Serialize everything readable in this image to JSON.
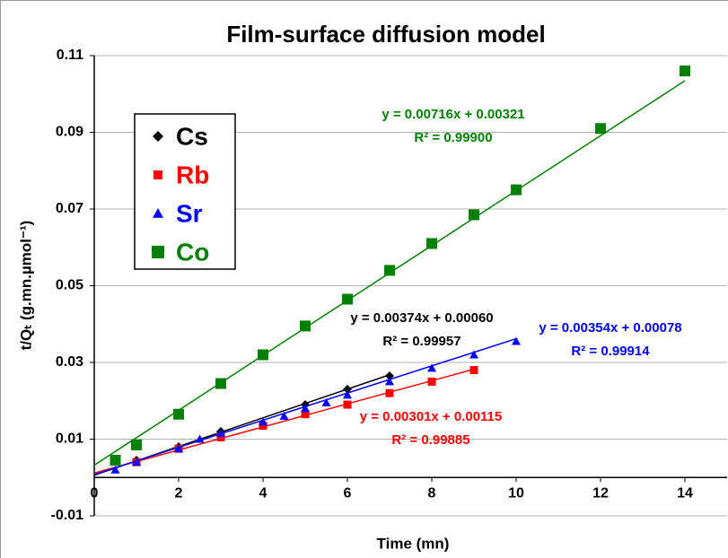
{
  "chart_data": {
    "type": "scatter",
    "title": "Film-surface diffusion model",
    "xlabel": "Time (mn)",
    "ylabel": "t/Qₜ (g.mn.µmol⁻¹)",
    "xlim": [
      0,
      15
    ],
    "xticks": [
      0,
      2,
      4,
      6,
      8,
      10,
      12,
      14
    ],
    "ylim": [
      -0.01,
      0.11
    ],
    "yticks": [
      -0.01,
      0.01,
      0.03,
      0.05,
      0.07,
      0.09,
      0.11
    ],
    "grid": true,
    "legend": "upper left",
    "series": [
      {
        "name": "Cs",
        "color": "#000000",
        "marker": "diamond",
        "x": [
          1,
          2,
          3,
          5,
          6,
          7
        ],
        "values": [
          0.0045,
          0.008,
          0.012,
          0.019,
          0.023,
          0.0265
        ],
        "trendline": {
          "slope": 0.00374,
          "intercept": 0.0006,
          "equation": "y = 0.00374x + 0.00060",
          "r2": "R² = 0.99957"
        }
      },
      {
        "name": "Rb",
        "color": "#ff0000",
        "marker": "square",
        "x": [
          1,
          2,
          3,
          4,
          5,
          6,
          7,
          8,
          9
        ],
        "values": [
          0.004,
          0.0075,
          0.0105,
          0.0135,
          0.0165,
          0.019,
          0.022,
          0.025,
          0.028
        ],
        "trendline": {
          "slope": 0.00301,
          "intercept": 0.00115,
          "equation": "y = 0.00301x + 0.00115",
          "r2": "R² = 0.99885"
        }
      },
      {
        "name": "Sr",
        "color": "#0000ff",
        "marker": "triangle",
        "x": [
          0.5,
          1,
          2,
          2.5,
          3,
          4,
          4.5,
          5,
          5.5,
          6,
          7,
          8,
          9,
          10
        ],
        "values": [
          0.002,
          0.004,
          0.0075,
          0.01,
          0.0115,
          0.0145,
          0.016,
          0.018,
          0.0195,
          0.0215,
          0.025,
          0.0285,
          0.032,
          0.0355
        ],
        "trendline": {
          "slope": 0.00354,
          "intercept": 0.00078,
          "equation": "y = 0.00354x + 0.00078",
          "r2": "R² = 0.99914"
        }
      },
      {
        "name": "Co",
        "color": "#008000",
        "marker": "square",
        "x": [
          0.5,
          1,
          2,
          3,
          4,
          5,
          6,
          7,
          8,
          9,
          10,
          12,
          14
        ],
        "values": [
          0.0045,
          0.0085,
          0.0165,
          0.0245,
          0.032,
          0.0395,
          0.0465,
          0.054,
          0.061,
          0.0685,
          0.075,
          0.091,
          0.106
        ],
        "trendline": {
          "slope": 0.00716,
          "intercept": 0.00321,
          "equation": "y = 0.00716x + 0.00321",
          "r2": "R² = 0.99900"
        }
      }
    ]
  }
}
